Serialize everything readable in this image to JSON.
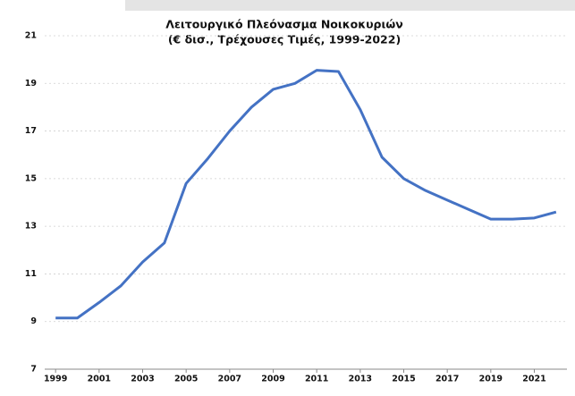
{
  "chart_data": {
    "type": "line",
    "title": "Λειτουργικό Πλεόνασμα Νοικοκυριών",
    "subtitle": "(€ δισ., Τρέχουσες Τιμές, 1999-2022)",
    "x": [
      1999,
      2000,
      2001,
      2002,
      2003,
      2004,
      2005,
      2006,
      2007,
      2008,
      2009,
      2010,
      2011,
      2012,
      2013,
      2014,
      2015,
      2016,
      2017,
      2018,
      2019,
      2020,
      2021,
      2022
    ],
    "values": [
      9.15,
      9.15,
      9.8,
      10.5,
      11.5,
      12.3,
      14.8,
      15.85,
      17.0,
      18.0,
      18.75,
      19.0,
      19.55,
      19.5,
      17.9,
      15.9,
      15.0,
      14.5,
      14.1,
      13.7,
      13.3,
      13.3,
      13.35,
      13.6
    ],
    "color": "#4472c4",
    "xlim": [
      1998.5,
      2022.5
    ],
    "xticks": [
      1999,
      2001,
      2003,
      2005,
      2007,
      2009,
      2011,
      2013,
      2015,
      2017,
      2019,
      2021
    ],
    "ylim": [
      7,
      21
    ],
    "yticks": [
      7,
      9,
      11,
      13,
      15,
      17,
      19,
      21
    ],
    "grid": true
  }
}
